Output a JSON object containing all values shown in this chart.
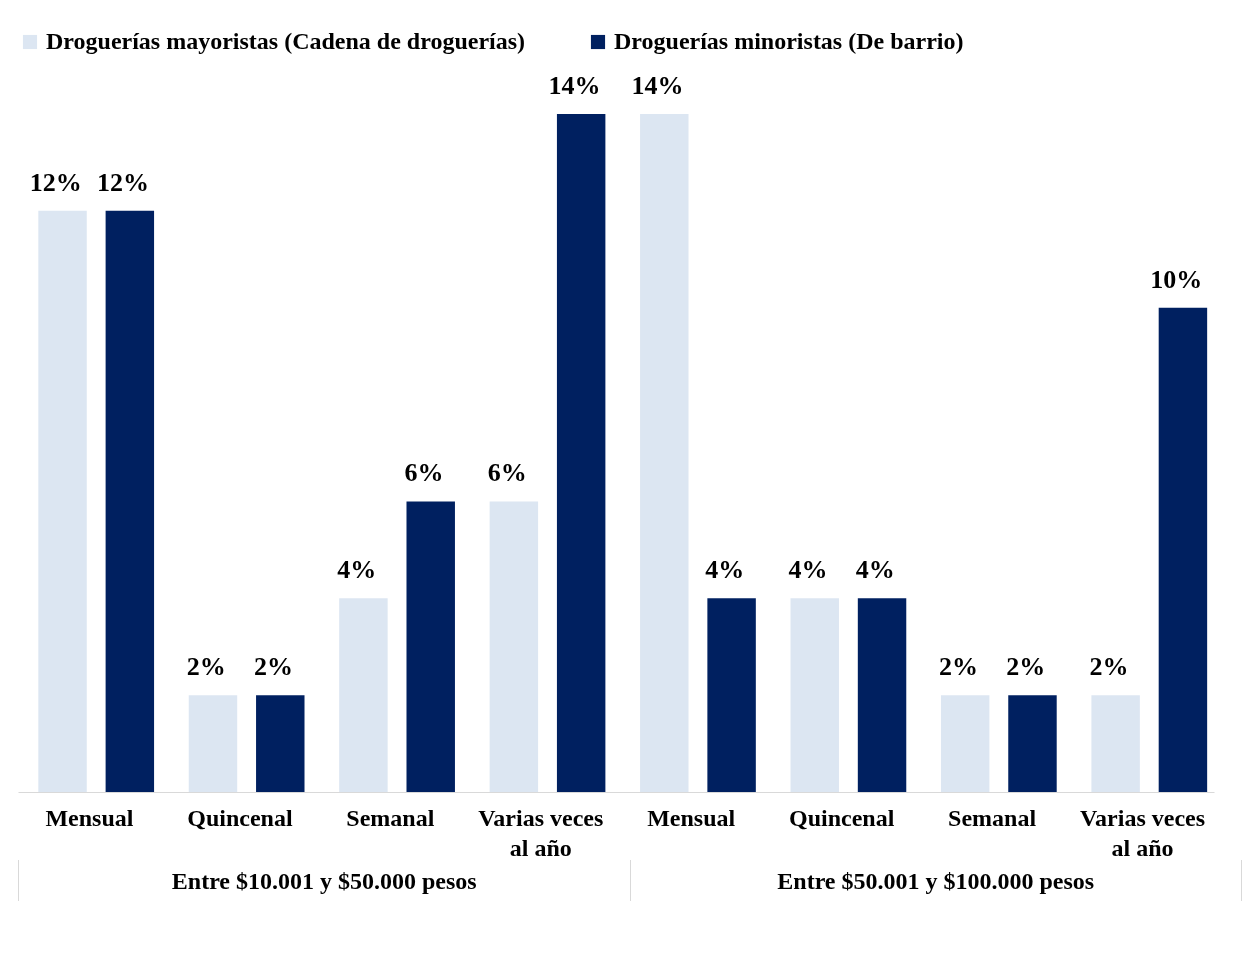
{
  "chart_data": {
    "type": "bar",
    "categories": [
      "Mensual",
      "Quincenal",
      "Semanal",
      "Varias veces al año",
      "Mensual",
      "Quincenal",
      "Semanal",
      "Varias veces al año"
    ],
    "series": [
      {
        "name": "Droguerías mayoristas (Cadena de droguerías)",
        "color": "#dce6f2",
        "values": [
          12,
          2,
          4,
          6,
          14,
          4,
          2,
          2
        ],
        "value_labels": [
          "12%",
          "2%",
          "4%",
          "6%",
          "14%",
          "4%",
          "2%",
          "2%"
        ]
      },
      {
        "name": "Droguerías minoristas (De barrio)",
        "color": "#002060",
        "values": [
          12,
          2,
          6,
          14,
          4,
          4,
          2,
          10
        ],
        "value_labels": [
          "12%",
          "2%",
          "6%",
          "14%",
          "4%",
          "4%",
          "2%",
          "10%"
        ]
      }
    ],
    "annotations": [
      "Entre $10.001 y $50.000 pesos",
      "Entre $50.001 y $100.000 pesos"
    ],
    "legend": "top",
    "grid": false
  }
}
